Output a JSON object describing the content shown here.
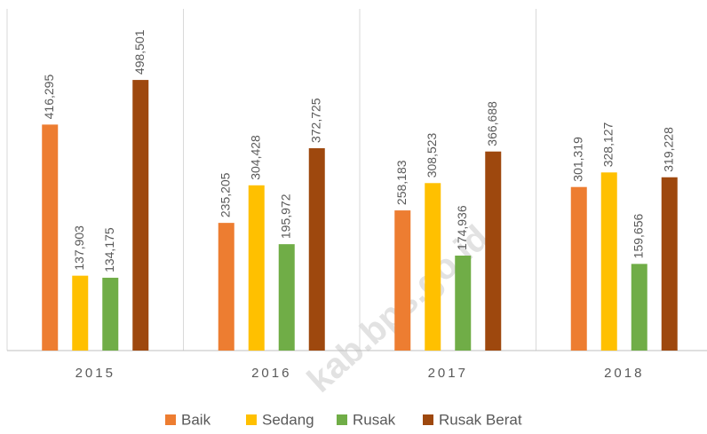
{
  "chart_data": {
    "type": "bar",
    "categories": [
      "2015",
      "2016",
      "2017",
      "2018"
    ],
    "series": [
      {
        "name": "Baik",
        "color": "#ed7d31",
        "values": [
          416295,
          235205,
          258183,
          301319
        ],
        "value_labels": [
          "416,295",
          "235,205",
          "258,183",
          "301,319"
        ]
      },
      {
        "name": "Sedang",
        "color": "#ffc000",
        "values": [
          137903,
          304428,
          308523,
          328127
        ],
        "value_labels": [
          "137,903",
          "304,428",
          "308,523",
          "328,127"
        ]
      },
      {
        "name": "Rusak",
        "color": "#70ad47",
        "values": [
          134175,
          195972,
          174936,
          159656
        ],
        "value_labels": [
          "134,175",
          "195,972",
          "174,936",
          "159,656"
        ]
      },
      {
        "name": "Rusak Berat",
        "color": "#9e480e",
        "values": [
          498501,
          372725,
          366688,
          319228
        ],
        "value_labels": [
          "498,501",
          "372,725",
          "366,688",
          "319,228"
        ]
      }
    ],
    "ylim": [
      0,
      600000
    ],
    "legend": "bottom",
    "watermark": "kab.bps.go.id"
  }
}
